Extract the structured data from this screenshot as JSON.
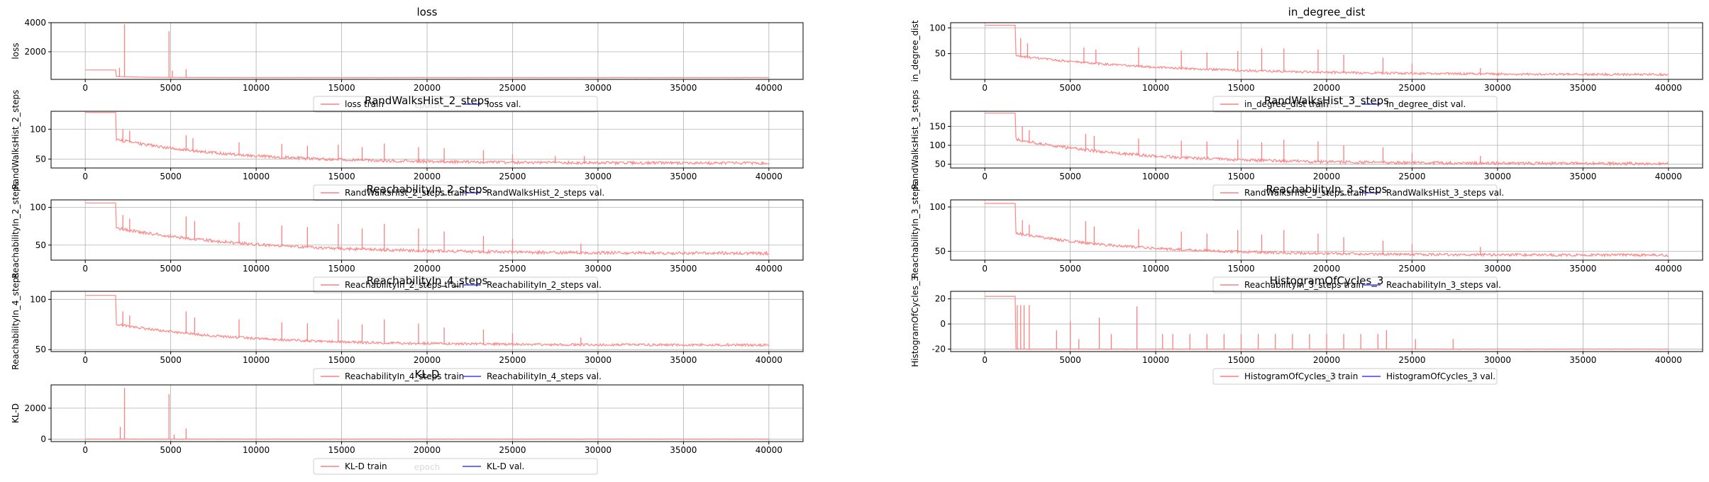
{
  "figure": {
    "colors": {
      "train": "#ff7f7f",
      "val": "#3f3fff",
      "grid": "#b0b0b0",
      "axes": "#000000"
    }
  },
  "chart_data": [
    {
      "type": "line",
      "title": "loss",
      "xlabel": "epoch",
      "ylabel": "loss",
      "xlim": [
        -2000,
        42000
      ],
      "ylim": [
        100,
        4000
      ],
      "xticks": [
        0,
        5000,
        10000,
        15000,
        20000,
        25000,
        30000,
        35000,
        40000
      ],
      "yticks": [
        2000,
        4000
      ],
      "grid": true,
      "legend_position": "bottom-center",
      "baseline": {
        "start": 750,
        "step_x": 1800,
        "floor": 300,
        "decay": 1800,
        "tail": 220
      },
      "spikes": [
        [
          2300,
          3900
        ],
        [
          4900,
          3400
        ],
        [
          5100,
          700
        ],
        [
          5900,
          800
        ],
        [
          2000,
          900
        ]
      ],
      "series": [
        {
          "name": "loss train",
          "color": "#ff7f7f"
        },
        {
          "name": "loss val.",
          "color": "#3f3fff"
        }
      ]
    },
    {
      "type": "line",
      "title": "in_degree_dist",
      "xlabel": "epoch",
      "ylabel": "in_degree_dist",
      "xlim": [
        -2000,
        42000
      ],
      "ylim": [
        0,
        110
      ],
      "xticks": [
        0,
        5000,
        10000,
        15000,
        20000,
        25000,
        30000,
        35000,
        40000
      ],
      "yticks": [
        50,
        100
      ],
      "grid": true,
      "legend_position": "bottom-center",
      "baseline": {
        "start": 105,
        "step_x": 1800,
        "floor": 45,
        "decay": 9000,
        "tail": 8
      },
      "spikes": [
        [
          2100,
          80
        ],
        [
          2500,
          70
        ],
        [
          5800,
          62
        ],
        [
          6500,
          58
        ],
        [
          9000,
          62
        ],
        [
          11500,
          56
        ],
        [
          13000,
          52
        ],
        [
          14800,
          55
        ],
        [
          16200,
          60
        ],
        [
          17500,
          60
        ],
        [
          19500,
          58
        ],
        [
          21000,
          48
        ],
        [
          23300,
          42
        ],
        [
          25000,
          30
        ],
        [
          29000,
          22
        ]
      ],
      "series": [
        {
          "name": "in_degree_dist train",
          "color": "#ff7f7f"
        },
        {
          "name": "in_degree_dist val.",
          "color": "#3f3fff"
        }
      ]
    },
    {
      "type": "line",
      "title": "RandWalksHist_2_steps",
      "xlabel": "epoch",
      "ylabel": "RandWalksHist_2_steps",
      "xlim": [
        -2000,
        42000
      ],
      "ylim": [
        35,
        130
      ],
      "xticks": [
        0,
        5000,
        10000,
        15000,
        20000,
        25000,
        30000,
        35000,
        40000
      ],
      "yticks": [
        50,
        100
      ],
      "grid": true,
      "legend_position": "bottom-center",
      "baseline": {
        "start": 128,
        "step_x": 1800,
        "floor": 82,
        "decay": 7000,
        "tail": 42
      },
      "spikes": [
        [
          2200,
          100
        ],
        [
          2600,
          97
        ],
        [
          5900,
          90
        ],
        [
          6300,
          85
        ],
        [
          9000,
          78
        ],
        [
          11500,
          75
        ],
        [
          13000,
          72
        ],
        [
          14800,
          74
        ],
        [
          16200,
          70
        ],
        [
          17500,
          76
        ],
        [
          19500,
          70
        ],
        [
          21000,
          68
        ],
        [
          23300,
          65
        ],
        [
          25000,
          58
        ],
        [
          27500,
          55
        ],
        [
          29200,
          55
        ]
      ],
      "series": [
        {
          "name": "RandWalksHist_2_steps train",
          "color": "#ff7f7f"
        },
        {
          "name": "RandWalksHist_2_steps val.",
          "color": "#3f3fff"
        }
      ]
    },
    {
      "type": "line",
      "title": "RandWalksHist_3_steps",
      "xlabel": "epoch",
      "ylabel": "RandWalksHist_3_steps",
      "xlim": [
        -2000,
        42000
      ],
      "ylim": [
        40,
        190
      ],
      "xticks": [
        0,
        5000,
        10000,
        15000,
        20000,
        25000,
        30000,
        35000,
        40000
      ],
      "yticks": [
        50,
        100,
        150
      ],
      "grid": true,
      "legend_position": "bottom-center",
      "baseline": {
        "start": 185,
        "step_x": 1800,
        "floor": 115,
        "decay": 7000,
        "tail": 50
      },
      "spikes": [
        [
          2200,
          150
        ],
        [
          2600,
          140
        ],
        [
          5900,
          130
        ],
        [
          6400,
          125
        ],
        [
          9000,
          118
        ],
        [
          11500,
          112
        ],
        [
          13000,
          110
        ],
        [
          14800,
          115
        ],
        [
          16200,
          108
        ],
        [
          17500,
          115
        ],
        [
          19500,
          110
        ],
        [
          21000,
          100
        ],
        [
          23300,
          95
        ],
        [
          25000,
          80
        ],
        [
          29000,
          72
        ]
      ],
      "series": [
        {
          "name": "RandWalksHist_3_steps train",
          "color": "#ff7f7f"
        },
        {
          "name": "RandWalksHist_3_steps val.",
          "color": "#3f3fff"
        }
      ]
    },
    {
      "type": "line",
      "title": "ReachabilityIn_2_steps",
      "xlabel": "epoch",
      "ylabel": "ReachabilityIn_2_steps",
      "xlim": [
        -2000,
        42000
      ],
      "ylim": [
        30,
        110
      ],
      "xticks": [
        0,
        5000,
        10000,
        15000,
        20000,
        25000,
        30000,
        35000,
        40000
      ],
      "yticks": [
        50,
        100
      ],
      "grid": true,
      "legend_position": "bottom-center",
      "baseline": {
        "start": 106,
        "step_x": 1800,
        "floor": 72,
        "decay": 8000,
        "tail": 38
      },
      "spikes": [
        [
          2200,
          90
        ],
        [
          2600,
          85
        ],
        [
          5900,
          88
        ],
        [
          6400,
          82
        ],
        [
          9000,
          80
        ],
        [
          11500,
          76
        ],
        [
          13000,
          74
        ],
        [
          14800,
          78
        ],
        [
          16200,
          72
        ],
        [
          17500,
          78
        ],
        [
          19500,
          72
        ],
        [
          21000,
          68
        ],
        [
          23300,
          62
        ],
        [
          25000,
          58
        ],
        [
          29000,
          52
        ]
      ],
      "series": [
        {
          "name": "ReachabilityIn_2_steps train",
          "color": "#ff7f7f"
        },
        {
          "name": "ReachabilityIn_2_steps val.",
          "color": "#3f3fff"
        }
      ]
    },
    {
      "type": "line",
      "title": "ReachabilityIn_3_steps",
      "xlabel": "epoch",
      "ylabel": "ReachabilityIn_3_steps",
      "xlim": [
        -2000,
        42000
      ],
      "ylim": [
        40,
        108
      ],
      "xticks": [
        0,
        5000,
        10000,
        15000,
        20000,
        25000,
        30000,
        35000,
        40000
      ],
      "yticks": [
        50,
        100
      ],
      "grid": true,
      "legend_position": "bottom-center",
      "baseline": {
        "start": 104,
        "step_x": 1800,
        "floor": 70,
        "decay": 7000,
        "tail": 45
      },
      "spikes": [
        [
          2200,
          85
        ],
        [
          2600,
          80
        ],
        [
          5900,
          84
        ],
        [
          6400,
          78
        ],
        [
          9000,
          75
        ],
        [
          11500,
          72
        ],
        [
          13000,
          70
        ],
        [
          14800,
          74
        ],
        [
          16200,
          69
        ],
        [
          17500,
          74
        ],
        [
          19500,
          70
        ],
        [
          21000,
          66
        ],
        [
          23300,
          62
        ],
        [
          25000,
          58
        ],
        [
          29000,
          55
        ]
      ],
      "series": [
        {
          "name": "ReachabilityIn_3_steps train",
          "color": "#ff7f7f"
        },
        {
          "name": "ReachabilityIn_3_steps val.",
          "color": "#3f3fff"
        }
      ]
    },
    {
      "type": "line",
      "title": "ReachabilityIn_4_steps",
      "xlabel": "epoch",
      "ylabel": "ReachabilityIn_4_steps",
      "xlim": [
        -2000,
        42000
      ],
      "ylim": [
        48,
        108
      ],
      "xticks": [
        0,
        5000,
        10000,
        15000,
        20000,
        25000,
        30000,
        35000,
        40000
      ],
      "yticks": [
        50,
        100
      ],
      "grid": true,
      "legend_position": "bottom-center",
      "baseline": {
        "start": 104,
        "step_x": 1800,
        "floor": 75,
        "decay": 7000,
        "tail": 54
      },
      "spikes": [
        [
          2200,
          88
        ],
        [
          2600,
          84
        ],
        [
          5900,
          88
        ],
        [
          6400,
          82
        ],
        [
          9000,
          80
        ],
        [
          11500,
          77
        ],
        [
          13000,
          76
        ],
        [
          14800,
          80
        ],
        [
          16200,
          75
        ],
        [
          17500,
          80
        ],
        [
          19500,
          76
        ],
        [
          21000,
          72
        ],
        [
          23300,
          70
        ],
        [
          25000,
          66
        ],
        [
          29000,
          62
        ]
      ],
      "series": [
        {
          "name": "ReachabilityIn_4_steps train",
          "color": "#ff7f7f"
        },
        {
          "name": "ReachabilityIn_4_steps val.",
          "color": "#3f3fff"
        }
      ]
    },
    {
      "type": "line",
      "title": "HistogramOfCycles_3",
      "xlabel": "epoch",
      "ylabel": "HistogramOfCycles_3",
      "xlim": [
        -2000,
        42000
      ],
      "ylim": [
        -22,
        26
      ],
      "xticks": [
        0,
        5000,
        10000,
        15000,
        20000,
        25000,
        30000,
        35000,
        40000
      ],
      "yticks": [
        -20,
        0,
        20
      ],
      "grid": true,
      "legend_position": "bottom-center",
      "baseline": {
        "start": 22,
        "step_x": 1800,
        "floor": -20,
        "decay": 0,
        "tail": -20
      },
      "spikes": [
        [
          1900,
          15
        ],
        [
          2100,
          15
        ],
        [
          2300,
          15
        ],
        [
          2600,
          15
        ],
        [
          4200,
          -5
        ],
        [
          5000,
          2
        ],
        [
          5500,
          -12
        ],
        [
          6700,
          5
        ],
        [
          7400,
          -8
        ],
        [
          8900,
          14
        ],
        [
          10400,
          -8
        ],
        [
          11000,
          -8
        ],
        [
          12000,
          -8
        ],
        [
          13000,
          -8
        ],
        [
          14000,
          -8
        ],
        [
          15000,
          -8
        ],
        [
          16000,
          -8
        ],
        [
          17000,
          -8
        ],
        [
          18000,
          -8
        ],
        [
          19000,
          -8
        ],
        [
          20000,
          -8
        ],
        [
          21000,
          -8
        ],
        [
          22000,
          -8
        ],
        [
          23000,
          -8
        ],
        [
          23500,
          -5
        ],
        [
          25200,
          -12
        ],
        [
          27400,
          -12
        ]
      ],
      "series": [
        {
          "name": "HistogramOfCycles_3 train",
          "color": "#ff7f7f"
        },
        {
          "name": "HistogramOfCycles_3 val.",
          "color": "#3f3fff"
        }
      ]
    },
    {
      "type": "line",
      "title": "KL-D",
      "xlabel": "epoch",
      "ylabel": "KL-D",
      "xlim": [
        -2000,
        42000
      ],
      "ylim": [
        -150,
        3500
      ],
      "xticks": [
        0,
        5000,
        10000,
        15000,
        20000,
        25000,
        30000,
        35000,
        40000
      ],
      "yticks": [
        0,
        2000
      ],
      "grid": true,
      "legend_position": "bottom-center",
      "baseline": {
        "start": 10,
        "step_x": 1800,
        "floor": 10,
        "decay": 0,
        "tail": 10
      },
      "spikes": [
        [
          2300,
          3300
        ],
        [
          2050,
          800
        ],
        [
          4900,
          2900
        ],
        [
          5900,
          700
        ],
        [
          5200,
          300
        ]
      ],
      "series": [
        {
          "name": "KL-D train",
          "color": "#ff7f7f"
        },
        {
          "name": "KL-D val.",
          "color": "#3f3fff"
        }
      ]
    }
  ]
}
